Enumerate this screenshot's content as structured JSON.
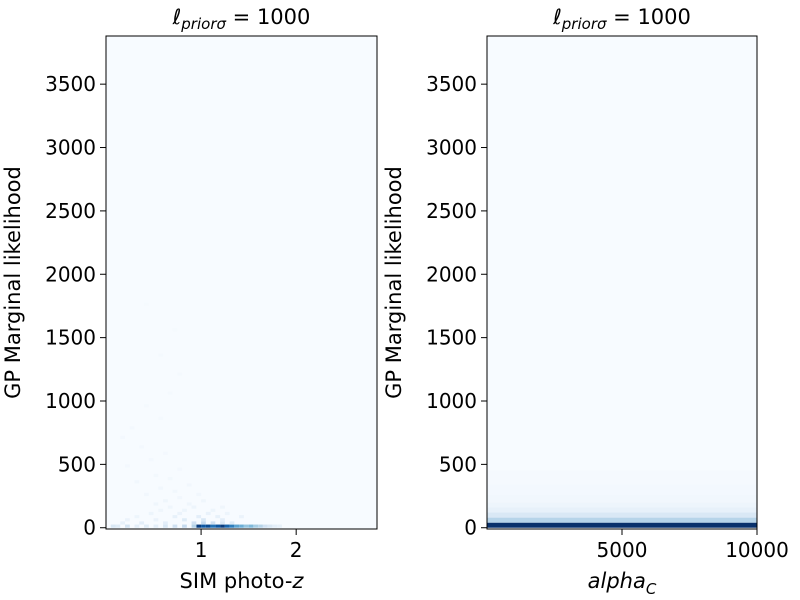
{
  "chart_data": [
    {
      "type": "heatmap",
      "title": {
        "symbol": "ℓ",
        "subscript": "priorσ",
        "rest": " = 1000"
      },
      "xlabel": {
        "text": "SIM photo-",
        "italic_suffix": "z"
      },
      "ylabel": "GP Marginal likelihood",
      "xlim": [
        0.0,
        2.85
      ],
      "ylim": [
        -10,
        3880
      ],
      "xticks": [
        1,
        2
      ],
      "xtick_labels": [
        "1",
        "2"
      ],
      "yticks": [
        0,
        500,
        1000,
        1500,
        2000,
        2500,
        3000,
        3500
      ],
      "ytick_labels": [
        "0",
        "500",
        "1000",
        "1500",
        "2000",
        "2500",
        "3000",
        "3500"
      ],
      "colormap": "Blues",
      "bin_width": [
        0.05,
        25
      ],
      "cells": [
        [
          0.95,
          0,
          0.95
        ],
        [
          1.0,
          0,
          0.85
        ],
        [
          1.05,
          0,
          0.9
        ],
        [
          1.1,
          0,
          0.75
        ],
        [
          1.15,
          0,
          0.85
        ],
        [
          1.2,
          0,
          0.95
        ],
        [
          1.25,
          0,
          0.8
        ],
        [
          1.3,
          0,
          0.7
        ],
        [
          1.35,
          0,
          0.55
        ],
        [
          1.4,
          0,
          0.5
        ],
        [
          1.45,
          0,
          0.4
        ],
        [
          1.5,
          0,
          0.45
        ],
        [
          1.55,
          0,
          0.35
        ],
        [
          1.6,
          0,
          0.3
        ],
        [
          1.65,
          0,
          0.2
        ],
        [
          1.7,
          0,
          0.15
        ],
        [
          1.75,
          0,
          0.1
        ],
        [
          1.8,
          0,
          0.08
        ],
        [
          0.05,
          0,
          0.15
        ],
        [
          0.1,
          0,
          0.12
        ],
        [
          0.2,
          0,
          0.18
        ],
        [
          0.3,
          0,
          0.1
        ],
        [
          0.4,
          0,
          0.12
        ],
        [
          0.5,
          0,
          0.1
        ],
        [
          0.6,
          0,
          0.15
        ],
        [
          0.7,
          0,
          0.2
        ],
        [
          0.8,
          0,
          0.25
        ],
        [
          0.9,
          0,
          0.3
        ],
        [
          0.9,
          25,
          0.2
        ],
        [
          1.0,
          25,
          0.25
        ],
        [
          1.1,
          25,
          0.2
        ],
        [
          1.2,
          25,
          0.15
        ],
        [
          1.3,
          25,
          0.12
        ],
        [
          0.6,
          25,
          0.1
        ],
        [
          0.15,
          25,
          0.08
        ],
        [
          0.35,
          25,
          0.1
        ],
        [
          0.8,
          50,
          0.12
        ],
        [
          1.0,
          50,
          0.15
        ],
        [
          1.2,
          50,
          0.1
        ],
        [
          0.5,
          50,
          0.06
        ],
        [
          0.2,
          50,
          0.06
        ],
        [
          0.7,
          75,
          0.08
        ],
        [
          0.95,
          75,
          0.1
        ],
        [
          1.15,
          75,
          0.08
        ],
        [
          1.4,
          75,
          0.06
        ],
        [
          0.3,
          75,
          0.05
        ],
        [
          0.75,
          100,
          0.06
        ],
        [
          1.05,
          100,
          0.07
        ],
        [
          1.25,
          100,
          0.05
        ],
        [
          0.45,
          100,
          0.05
        ],
        [
          0.8,
          125,
          0.05
        ],
        [
          1.1,
          125,
          0.05
        ],
        [
          0.55,
          125,
          0.04
        ],
        [
          0.65,
          150,
          0.04
        ],
        [
          0.9,
          150,
          0.05
        ],
        [
          1.2,
          150,
          0.04
        ],
        [
          0.5,
          175,
          0.04
        ],
        [
          0.85,
          175,
          0.04
        ],
        [
          1.0,
          200,
          0.04
        ],
        [
          0.6,
          200,
          0.04
        ],
        [
          0.75,
          225,
          0.03
        ],
        [
          0.4,
          250,
          0.03
        ],
        [
          0.95,
          250,
          0.03
        ],
        [
          0.7,
          275,
          0.03
        ],
        [
          0.55,
          300,
          0.03
        ],
        [
          0.85,
          325,
          0.03
        ],
        [
          0.3,
          350,
          0.03
        ],
        [
          0.65,
          375,
          0.025
        ],
        [
          0.5,
          400,
          0.025
        ],
        [
          0.75,
          450,
          0.02
        ],
        [
          0.2,
          475,
          0.02
        ],
        [
          0.45,
          525,
          0.02
        ],
        [
          0.6,
          575,
          0.02
        ],
        [
          0.35,
          625,
          0.02
        ],
        [
          0.15,
          700,
          0.02
        ],
        [
          0.25,
          775,
          0.02
        ],
        [
          0.55,
          850,
          0.015
        ],
        [
          0.4,
          950,
          0.015
        ],
        [
          0.65,
          1050,
          0.015
        ],
        [
          0.75,
          1200,
          0.015
        ],
        [
          0.55,
          1350,
          0.015
        ],
        [
          0.7,
          1550,
          0.01
        ],
        [
          0.4,
          1750,
          0.01
        ]
      ]
    },
    {
      "type": "heatmap",
      "title": {
        "symbol": "ℓ",
        "subscript": "priorσ",
        "rest": " = 1000"
      },
      "xlabel": {
        "text": "",
        "italic_suffix": "alpha",
        "italic_subscript": "C"
      },
      "ylabel": "GP Marginal likelihood",
      "xlim": [
        0,
        10000
      ],
      "ylim": [
        -10,
        3880
      ],
      "xticks": [
        5000,
        10000
      ],
      "xtick_labels": [
        "5000",
        "10000"
      ],
      "yticks": [
        0,
        500,
        1000,
        1500,
        2000,
        2500,
        3000,
        3500
      ],
      "ytick_labels": [
        "0",
        "500",
        "1000",
        "1500",
        "2000",
        "2500",
        "3000",
        "3500"
      ],
      "colormap": "Blues",
      "rows": [
        [
          0,
          40,
          1.0
        ],
        [
          40,
          80,
          0.3
        ],
        [
          80,
          120,
          0.15
        ],
        [
          120,
          160,
          0.08
        ],
        [
          160,
          200,
          0.05
        ],
        [
          200,
          260,
          0.03
        ],
        [
          260,
          340,
          0.02
        ],
        [
          340,
          450,
          0.012
        ]
      ]
    }
  ]
}
